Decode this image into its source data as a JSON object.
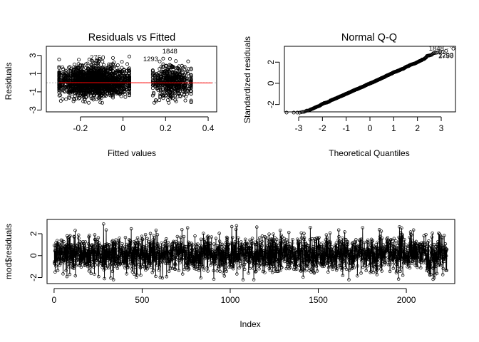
{
  "chart_data": [
    {
      "id": "resid-fitted",
      "type": "scatter",
      "title": "Residuals vs Fitted",
      "xlabel": "Fitted values",
      "ylabel": "Residuals",
      "xlim": [
        -0.36,
        0.44
      ],
      "ylim": [
        -3.2,
        4.0
      ],
      "xticks": [
        -0.2,
        0.0,
        0.2,
        0.4
      ],
      "yticks": [
        -3,
        -1,
        1,
        3
      ],
      "n_points": 2230,
      "cluster_1_x_range": [
        -0.3,
        0.03
      ],
      "cluster_2_x_range": [
        0.14,
        0.32
      ],
      "smoother_color": "#ff0000",
      "reference_line": 0,
      "annotations": [
        {
          "label": "2750",
          "x": -0.12,
          "y": 2.5
        },
        {
          "label": "1293",
          "x": 0.13,
          "y": 2.35
        },
        {
          "label": "1848",
          "x": 0.22,
          "y": 3.2
        }
      ]
    },
    {
      "id": "normal-qq",
      "type": "scatter",
      "title": "Normal Q-Q",
      "xlabel": "Theoretical Quantiles",
      "ylabel": "Standardized residuals",
      "xlim": [
        -3.6,
        3.6
      ],
      "ylim": [
        -2.7,
        3.5
      ],
      "xticks": [
        -3,
        -2,
        -1,
        0,
        1,
        2,
        3
      ],
      "yticks": [
        -2,
        0,
        2
      ],
      "n_points": 2230,
      "annotations": [
        {
          "label": "1848",
          "x": 2.8,
          "y": 3.1
        },
        {
          "label": "1293",
          "x": 3.2,
          "y": 2.45
        },
        {
          "label": "2750",
          "x": 3.2,
          "y": 2.4
        }
      ]
    },
    {
      "id": "resid-index",
      "type": "line",
      "title": "",
      "xlabel": "Index",
      "ylabel": "mod$residuals",
      "xlim": [
        -40,
        2275
      ],
      "ylim": [
        -2.55,
        3.3
      ],
      "xticks": [
        0,
        500,
        1000,
        1500,
        2000
      ],
      "yticks": [
        -2,
        0,
        2
      ],
      "n_points": 2230
    }
  ]
}
